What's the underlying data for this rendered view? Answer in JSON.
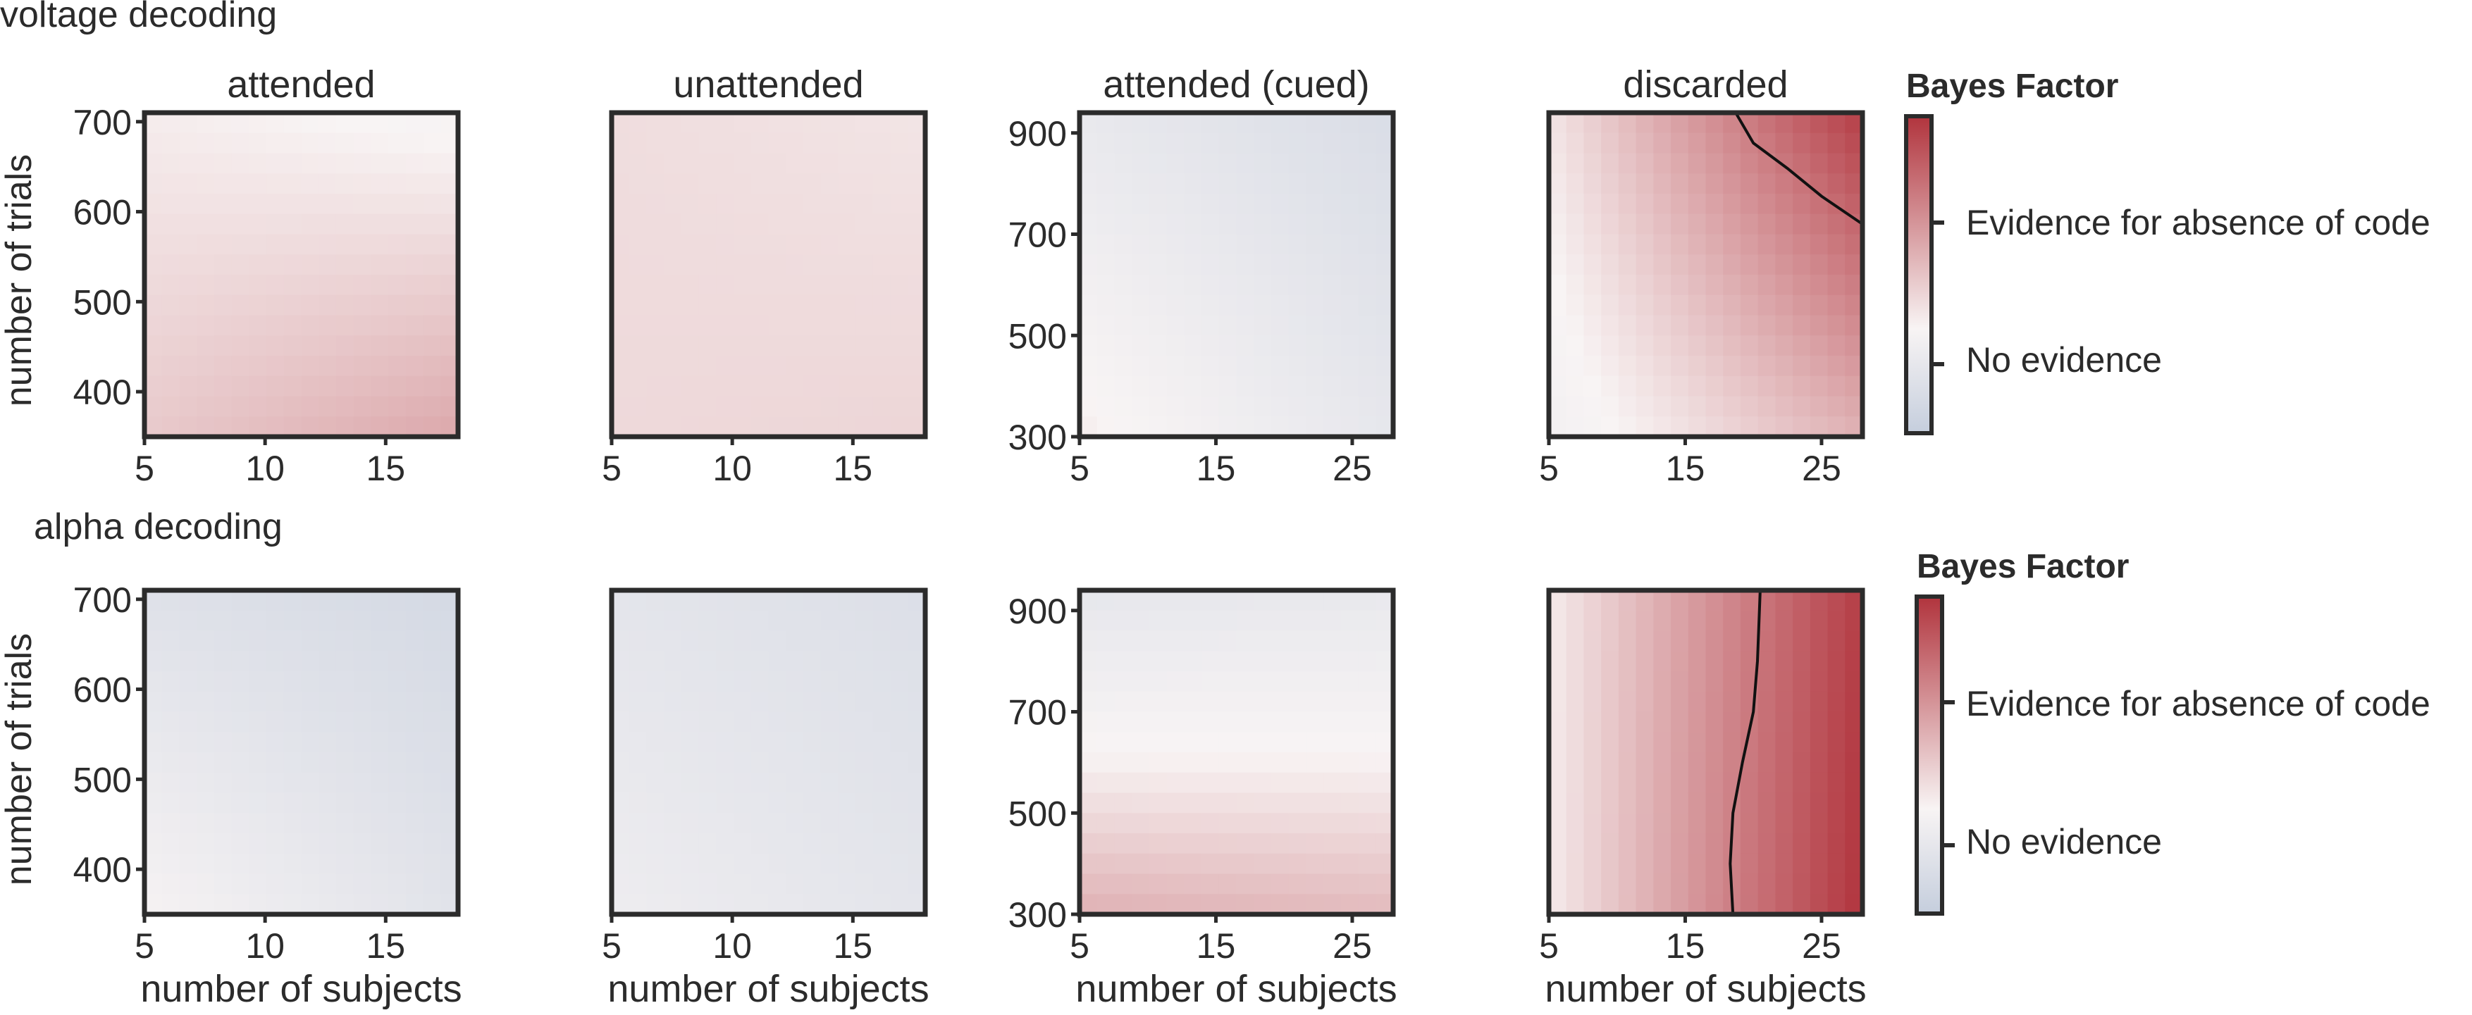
{
  "sections": [
    {
      "label": "voltage decoding"
    },
    {
      "label": "alpha decoding"
    }
  ],
  "colorbar": {
    "title": "Bayes Factor",
    "upper_label": "Evidence for absence of code",
    "lower_label": "No evidence"
  },
  "axis_labels": {
    "y": "number of trials",
    "x": "number of subjects"
  },
  "colors": {
    "blue": "#c5cedd",
    "white": "#f8f4f4",
    "red": "#b1343d",
    "frame": "#2b2b2b",
    "contour": "#111111"
  },
  "chart_data": [
    {
      "type": "heatmap",
      "panel": "voltage-attended",
      "title": "attended",
      "xlabel": "",
      "ylabel": "number of trials",
      "xlim": [
        5,
        18
      ],
      "ylim": [
        350,
        710
      ],
      "x_ticks": [
        5,
        10,
        15
      ],
      "y_ticks": [
        400,
        500,
        600,
        700
      ],
      "corner_values": {
        "bottom_left": 0.22,
        "bottom_right": 0.4,
        "top_left": 0.04,
        "top_right": -0.04
      },
      "contour": []
    },
    {
      "type": "heatmap",
      "panel": "voltage-unattended",
      "title": "unattended",
      "xlabel": "",
      "ylabel": "",
      "xlim": [
        5,
        18
      ],
      "ylim": [
        350,
        710
      ],
      "x_ticks": [
        5,
        10,
        15
      ],
      "y_ticks": [],
      "corner_values": {
        "bottom_left": 0.14,
        "bottom_right": 0.16,
        "top_left": 0.12,
        "top_right": 0.08
      },
      "contour": []
    },
    {
      "type": "heatmap",
      "panel": "voltage-attended-cued",
      "title": "attended (cued)",
      "xlabel": "",
      "ylabel": "",
      "xlim": [
        5,
        28
      ],
      "ylim": [
        300,
        940
      ],
      "x_ticks": [
        5,
        15,
        25
      ],
      "y_ticks": [
        300,
        500,
        700,
        900
      ],
      "corner_values": {
        "bottom_left": 0.05,
        "bottom_right": -0.35,
        "top_left": -0.3,
        "top_right": -0.6
      },
      "contour": []
    },
    {
      "type": "heatmap",
      "panel": "voltage-discarded",
      "title": "discarded",
      "xlabel": "",
      "ylabel": "",
      "xlim": [
        5,
        28
      ],
      "ylim": [
        300,
        940
      ],
      "x_ticks": [
        5,
        15,
        25
      ],
      "y_ticks": [],
      "corner_values": {
        "bottom_left": -0.1,
        "bottom_right": 0.35,
        "top_left": 0.08,
        "top_right": 0.95
      },
      "contour": [
        [
          18.7,
          940
        ],
        [
          20,
          880
        ],
        [
          22.5,
          830
        ],
        [
          25,
          775
        ],
        [
          28,
          720
        ]
      ]
    },
    {
      "type": "heatmap",
      "panel": "alpha-attended",
      "title": "",
      "xlabel": "number of subjects",
      "ylabel": "number of trials",
      "xlim": [
        5,
        18
      ],
      "ylim": [
        350,
        710
      ],
      "x_ticks": [
        5,
        10,
        15
      ],
      "y_ticks": [
        400,
        500,
        600,
        700
      ],
      "corner_values": {
        "bottom_left": -0.05,
        "bottom_right": -0.45,
        "top_left": -0.5,
        "top_right": -0.7
      },
      "contour": []
    },
    {
      "type": "heatmap",
      "panel": "alpha-unattended",
      "title": "",
      "xlabel": "number of subjects",
      "ylabel": "",
      "xlim": [
        5,
        18
      ],
      "ylim": [
        350,
        710
      ],
      "x_ticks": [
        5,
        10,
        15
      ],
      "y_ticks": [],
      "corner_values": {
        "bottom_left": -0.2,
        "bottom_right": -0.4,
        "top_left": -0.4,
        "top_right": -0.55
      },
      "contour": []
    },
    {
      "type": "heatmap",
      "panel": "alpha-attended-cued",
      "title": "",
      "xlabel": "number of subjects",
      "ylabel": "",
      "xlim": [
        5,
        28
      ],
      "ylim": [
        300,
        940
      ],
      "x_ticks": [
        5,
        15,
        25
      ],
      "y_ticks": [
        300,
        500,
        700,
        900
      ],
      "corner_values": {
        "bottom_left": 0.35,
        "bottom_right": 0.3,
        "top_left": -0.35,
        "top_right": -0.3
      },
      "contour": []
    },
    {
      "type": "heatmap",
      "panel": "alpha-discarded",
      "title": "",
      "xlabel": "number of subjects",
      "ylabel": "",
      "xlim": [
        5,
        28
      ],
      "ylim": [
        300,
        940
      ],
      "x_ticks": [
        5,
        15,
        25
      ],
      "y_ticks": [],
      "corner_values": {
        "bottom_left": 0.05,
        "bottom_right": 1.0,
        "top_left": 0.05,
        "top_right": 0.95
      },
      "contour": [
        [
          18.5,
          300
        ],
        [
          18.3,
          400
        ],
        [
          18.5,
          500
        ],
        [
          19.2,
          600
        ],
        [
          20,
          700
        ],
        [
          20.3,
          800
        ],
        [
          20.5,
          940
        ]
      ]
    }
  ]
}
